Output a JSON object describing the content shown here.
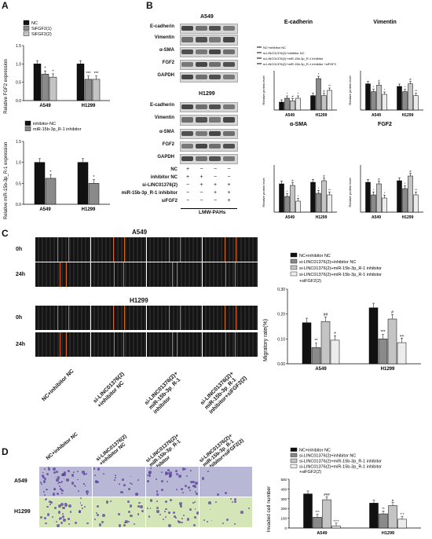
{
  "panels": {
    "A": "A",
    "B": "B",
    "C": "C",
    "D": "D"
  },
  "panelA": {
    "chart1": {
      "ylabel": "Relative FGF2 expression",
      "legend": [
        "NC",
        "SiFGF2(1)",
        "SiFGF2(2)"
      ],
      "categories": [
        "A549",
        "H1299"
      ],
      "yticks": [
        "0.0",
        "0.5",
        "1.0",
        "1.5"
      ],
      "sig": [
        "*",
        "**",
        "***",
        "***"
      ]
    },
    "chart2": {
      "ylabel": "Relative miR-15b-3p_R-1 expression",
      "legend": [
        "inhibitor-NC",
        "miR-15b-3p_R-1 inhibitor"
      ],
      "categories": [
        "A549",
        "H1299"
      ],
      "yticks": [
        "0.0",
        "0.5",
        "1.0",
        "1.5"
      ],
      "sig": [
        "*",
        "*"
      ]
    }
  },
  "panelB": {
    "a549_title": "A549",
    "h1299_title": "H1299",
    "blot_labels": [
      "E-cadherin",
      "Vimentin",
      "α-SMA",
      "FGF2",
      "GAPDH"
    ],
    "treat_rows": [
      "NC",
      "inhibitor NC",
      "si-LINC01376(2)",
      "miR-15b-3p_R-1 inhibitor",
      "siFGF2"
    ],
    "treat_signs": [
      [
        "+",
        "−",
        "−",
        "−"
      ],
      [
        "+",
        "+",
        "−",
        "−"
      ],
      [
        "−",
        "+",
        "+",
        "+"
      ],
      [
        "−",
        "−",
        "+",
        "+"
      ],
      [
        "−",
        "−",
        "−",
        "+"
      ]
    ],
    "footer": "LMW-PAHs",
    "legend": [
      "NC+inhibitor NC",
      "si-LINC01376(2)+inhibitor NC",
      "si-LINC01376(2)+miR-15b-3p_R-1 inhibitor",
      "si-LINC01376(2)+miR-15b-3p_R-1 inhibitor +siFGF2"
    ],
    "mini_titles": [
      "E-cadherin",
      "Vimentin",
      "α-SMA",
      "FGF2"
    ],
    "mini_ylabel": "Relative protein level",
    "mini_categories": [
      "A549",
      "H1299"
    ]
  },
  "panelC": {
    "a549_title": "A549",
    "h1299_title": "H1299",
    "row_labels": [
      "0h",
      "24h",
      "0h",
      "24h"
    ],
    "col_labels": [
      "NC+inhibitor NC",
      "si-LINC01376(2)\n+inhibitor NC",
      "si-LINC01376(2)+\nmiR-15b-3p_R-1\ninhibitor",
      "si-LINC01376(2)+\nmiR-15b-3p_R-1\ninhibitor+siFGF2(2)"
    ],
    "legend": [
      "NC+inhibitor NC",
      "si-LINC01376(2)+inhibitor NC",
      "si-LINC01376(2)+miR-15b-3p_R-1 inhibitor",
      "si-LINC01376(2)+miR-15b-3p_R-1 inhibitor",
      "+siFGF2(2)"
    ],
    "ylabel": "Migratory rate(%)",
    "yticks": [
      "0.00",
      "0.10",
      "0.20",
      "0.30"
    ],
    "categories": [
      "A549",
      "H1299"
    ],
    "sig_a549": [
      "",
      "**",
      "##",
      "+"
    ],
    "sig_h1299": [
      "",
      "***",
      "#",
      "++"
    ]
  },
  "panelD": {
    "col_labels": [
      "NC+inhibitor NC",
      "si-LINC01376(2)\n+inhibitor NC",
      "si-LINC01376(2)+\nmiR-15b-3p_R-1\ninhibitor",
      "si-LINC01376(2)+\nmiR-15b-3p_R-1\ninhibitor+siFGF2(2)"
    ],
    "row_labels": [
      "A549",
      "H1299"
    ],
    "legend": [
      "NC+inhibitor NC",
      "si-LINC01376(2)+inhibitor NC",
      "si-LINC01376(2)+miR-15b-3p_R-1 inhibitor",
      "si-LINC01376(2)+miR-15b-3p_R-1 inhibitor",
      "+siFGF2(2)"
    ],
    "ylabel": "Invaded cell number",
    "yticks": [
      "0",
      "100",
      "200",
      "300",
      "400",
      "500"
    ],
    "categories": [
      "A549",
      "H1299"
    ],
    "sig_a549": [
      "",
      "***",
      "###",
      "+++"
    ],
    "sig_h1299": [
      "",
      "**",
      "#",
      "++"
    ]
  },
  "colors": {
    "bar1": "#111111",
    "bar2": "#8a8a8a",
    "bar3": "#c4c4c4",
    "bar4": "#ececec",
    "scratch": "#d96a1e",
    "a549_well": "#b8b8d6",
    "h1299_well": "#d4e6b8"
  },
  "chart_data": [
    {
      "type": "bar",
      "title": "",
      "ylabel": "Relative FGF2 expression",
      "categories": [
        "A549",
        "H1299"
      ],
      "ylim": [
        0,
        1.5
      ],
      "series": [
        {
          "name": "NC",
          "values": [
            1.0,
            1.0
          ]
        },
        {
          "name": "SiFGF2(1)",
          "values": [
            0.72,
            0.58
          ]
        },
        {
          "name": "SiFGF2(2)",
          "values": [
            0.64,
            0.58
          ]
        }
      ]
    },
    {
      "type": "bar",
      "title": "",
      "ylabel": "Relative miR-15b-3p_R-1 expression",
      "categories": [
        "A549",
        "H1299"
      ],
      "ylim": [
        0,
        1.5
      ],
      "series": [
        {
          "name": "inhibitor-NC",
          "values": [
            1.0,
            1.0
          ]
        },
        {
          "name": "miR-15b-3p_R-1 inhibitor",
          "values": [
            0.62,
            0.5
          ]
        }
      ]
    },
    {
      "type": "bar",
      "title": "E-cadherin",
      "ylabel": "Relative protein level",
      "categories": [
        "A549",
        "H1299"
      ],
      "ylim": [
        0,
        1.5
      ],
      "series": [
        {
          "values": [
            0.3,
            0.55
          ]
        },
        {
          "values": [
            0.45,
            1.2
          ]
        },
        {
          "values": [
            0.35,
            0.55
          ]
        },
        {
          "values": [
            0.45,
            0.75
          ]
        }
      ]
    },
    {
      "type": "bar",
      "title": "Vimentin",
      "ylabel": "Relative protein level",
      "categories": [
        "A549",
        "H1299"
      ],
      "ylim": [
        0,
        1.5
      ],
      "series": [
        {
          "values": [
            1.0,
            0.9
          ]
        },
        {
          "values": [
            0.7,
            0.7
          ]
        },
        {
          "values": [
            0.95,
            1.0
          ]
        },
        {
          "values": [
            0.6,
            0.55
          ]
        }
      ]
    },
    {
      "type": "bar",
      "title": "α-SMA",
      "ylabel": "Relative protein level",
      "categories": [
        "A549",
        "H1299"
      ],
      "ylim": [
        0,
        1.5
      ],
      "series": [
        {
          "values": [
            0.9,
            0.95
          ]
        },
        {
          "values": [
            0.5,
            0.6
          ]
        },
        {
          "values": [
            0.85,
            1.0
          ]
        },
        {
          "values": [
            0.35,
            0.55
          ]
        }
      ]
    },
    {
      "type": "bar",
      "title": "FGF2",
      "ylabel": "Relative protein level",
      "categories": [
        "A549",
        "H1299"
      ],
      "ylim": [
        0,
        1.5
      ],
      "series": [
        {
          "values": [
            0.95,
            1.0
          ]
        },
        {
          "values": [
            0.55,
            0.75
          ]
        },
        {
          "values": [
            0.9,
            1.15
          ]
        },
        {
          "values": [
            0.45,
            0.55
          ]
        }
      ]
    },
    {
      "type": "bar",
      "title": "",
      "ylabel": "Migratory rate(%)",
      "categories": [
        "A549",
        "H1299"
      ],
      "ylim": [
        0,
        0.3
      ],
      "series": [
        {
          "name": "NC+inhibitor NC",
          "values": [
            0.165,
            0.225
          ]
        },
        {
          "name": "si-LINC01376(2)+inhibitor NC",
          "values": [
            0.065,
            0.1
          ]
        },
        {
          "name": "si-LINC01376(2)+miR-15b-3p_R-1 inhibitor",
          "values": [
            0.17,
            0.18
          ]
        },
        {
          "name": "si-LINC01376(2)+miR-15b-3p_R-1 inhibitor +siFGF2(2)",
          "values": [
            0.095,
            0.085
          ]
        }
      ]
    },
    {
      "type": "bar",
      "title": "",
      "ylabel": "Invaded cell number",
      "categories": [
        "A549",
        "H1299"
      ],
      "ylim": [
        0,
        500
      ],
      "series": [
        {
          "name": "NC+inhibitor NC",
          "values": [
            350,
            255
          ]
        },
        {
          "name": "si-LINC01376(2)+inhibitor NC",
          "values": [
            110,
            145
          ]
        },
        {
          "name": "si-LINC01376(2)+miR-15b-3p_R-1 inhibitor",
          "values": [
            290,
            230
          ]
        },
        {
          "name": "si-LINC01376(2)+miR-15b-3p_R-1 inhibitor +siFGF2(2)",
          "values": [
            20,
            90
          ]
        }
      ]
    }
  ]
}
